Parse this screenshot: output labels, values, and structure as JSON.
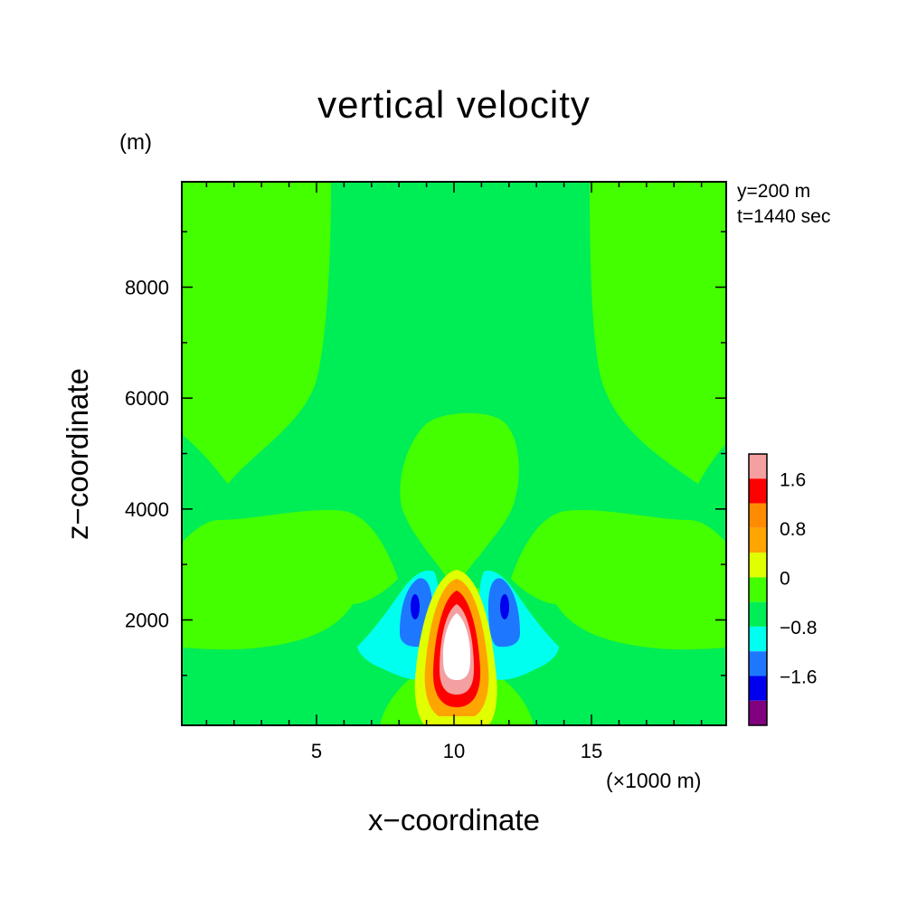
{
  "chart_data": {
    "type": "contour",
    "title": "vertical velocity",
    "xlabel": "x−coordinate",
    "ylabel": "z−coordinate",
    "x_unit": "(×1000 m)",
    "y_unit": "(m)",
    "annotations": [
      "y=200 m",
      "t=1440 sec"
    ],
    "xlim": [
      0.1,
      19.9
    ],
    "ylim": [
      100,
      9900
    ],
    "x_ticks": [
      5,
      10,
      15
    ],
    "y_ticks": [
      2000,
      4000,
      6000,
      8000
    ],
    "x_tick_labels": [
      "5",
      "10",
      "15"
    ],
    "y_tick_labels": [
      "2000",
      "4000",
      "6000",
      "8000"
    ],
    "colorbar": {
      "levels": [
        {
          "range": "> 2.0",
          "color": "#f4a0a0"
        },
        {
          "range": "1.6 to 2.0",
          "color": "#ff0000"
        },
        {
          "range": "1.2 to 1.6",
          "color": "#ff8c00"
        },
        {
          "range": "0.8 to 1.2",
          "color": "#ffa500"
        },
        {
          "range": "0.4 to 0.8",
          "color": "#e0ff00"
        },
        {
          "range": "0 to 0.4",
          "color": "#44ff00"
        },
        {
          "range": "-0.4 to 0",
          "color": "#00ee55"
        },
        {
          "range": "-0.8 to -0.4",
          "color": "#00ffee"
        },
        {
          "range": "-1.2 to -0.8",
          "color": "#1e78ff"
        },
        {
          "range": "-1.6 to -1.2",
          "color": "#0000ee"
        },
        {
          "range": "< -1.6",
          "color": "#800080"
        }
      ],
      "tick_labels": [
        "1.6",
        "0.8",
        "0",
        "−0.8",
        "−1.6"
      ]
    },
    "features": [
      {
        "name": "updraft core",
        "x": 10.0,
        "z": 1500,
        "max_value": ">2.0"
      },
      {
        "name": "downdraft left",
        "x": 8.5,
        "z": 2100,
        "min_value": "<-1.2"
      },
      {
        "name": "downdraft right",
        "x": 11.8,
        "z": 2100,
        "min_value": "<-1.2"
      },
      {
        "name": "weak rising dome",
        "x": 10.0,
        "z": 4700,
        "value": "0 to 0.4"
      }
    ]
  }
}
